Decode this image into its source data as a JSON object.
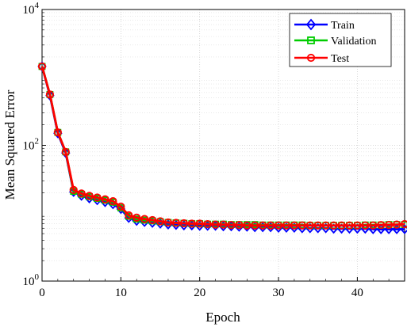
{
  "chart_data": {
    "type": "line",
    "xlabel": "Epoch",
    "ylabel": "Mean Squared Error",
    "y_scale": "log",
    "xlim": [
      0,
      46
    ],
    "ylim": [
      1,
      10000
    ],
    "x_ticks": [
      0,
      10,
      20,
      30,
      40
    ],
    "x_tick_labels": [
      "0",
      "10",
      "20",
      "30",
      "40"
    ],
    "y_ticks": [
      1,
      100,
      10000
    ],
    "y_tick_labels": [
      {
        "base": "10",
        "exp": "0"
      },
      {
        "base": "10",
        "exp": "2"
      },
      {
        "base": "10",
        "exp": "4"
      }
    ],
    "grid": true,
    "minor_grid": true,
    "legend_position": "top-right",
    "x": [
      0,
      1,
      2,
      3,
      4,
      5,
      6,
      7,
      8,
      9,
      10,
      11,
      12,
      13,
      14,
      15,
      16,
      17,
      18,
      19,
      20,
      21,
      22,
      23,
      24,
      25,
      26,
      27,
      28,
      29,
      30,
      31,
      32,
      33,
      34,
      35,
      36,
      37,
      38,
      39,
      40,
      41,
      42,
      43,
      44,
      45,
      46
    ],
    "series": [
      {
        "name": "Train",
        "color": "#0000ff",
        "marker": "diamond",
        "values": [
          1450,
          540,
          150,
          77,
          20.5,
          18,
          16.5,
          15.5,
          14.5,
          13.5,
          11.5,
          8.5,
          7.7,
          7.4,
          7.2,
          7.0,
          6.8,
          6.7,
          6.6,
          6.6,
          6.5,
          6.5,
          6.5,
          6.4,
          6.4,
          6.3,
          6.3,
          6.2,
          6.2,
          6.2,
          6.1,
          6.1,
          6.1,
          6.0,
          6.0,
          6.0,
          6.0,
          5.9,
          5.9,
          5.9,
          5.9,
          5.9,
          5.8,
          5.8,
          5.8,
          5.8,
          5.8
        ]
      },
      {
        "name": "Validation",
        "color": "#00cc00",
        "marker": "square",
        "values": [
          1450,
          560,
          155,
          80,
          21,
          19,
          17.5,
          16.5,
          15.5,
          14.5,
          12,
          9,
          8.2,
          7.9,
          7.7,
          7.5,
          7.3,
          7.2,
          7.1,
          7.0,
          7.0,
          6.9,
          6.9,
          6.9,
          6.8,
          6.8,
          6.8,
          6.8,
          6.7,
          6.7,
          6.7,
          6.7,
          6.7,
          6.7,
          6.6,
          6.6,
          6.6,
          6.6,
          6.6,
          6.6,
          6.6,
          6.7,
          6.7,
          6.7,
          6.8,
          6.8,
          6.8
        ]
      },
      {
        "name": "Test",
        "color": "#ff0000",
        "marker": "circle",
        "values": [
          1450,
          560,
          155,
          80,
          22,
          19.5,
          18,
          17,
          16,
          15,
          12.5,
          9.3,
          8.6,
          8.2,
          7.9,
          7.6,
          7.3,
          7.2,
          7.1,
          7.0,
          7.0,
          6.9,
          6.8,
          6.8,
          6.7,
          6.7,
          6.6,
          6.6,
          6.6,
          6.6,
          6.6,
          6.6,
          6.6,
          6.6,
          6.6,
          6.6,
          6.6,
          6.6,
          6.6,
          6.6,
          6.6,
          6.6,
          6.6,
          6.7,
          6.7,
          6.8,
          6.9
        ]
      }
    ]
  }
}
